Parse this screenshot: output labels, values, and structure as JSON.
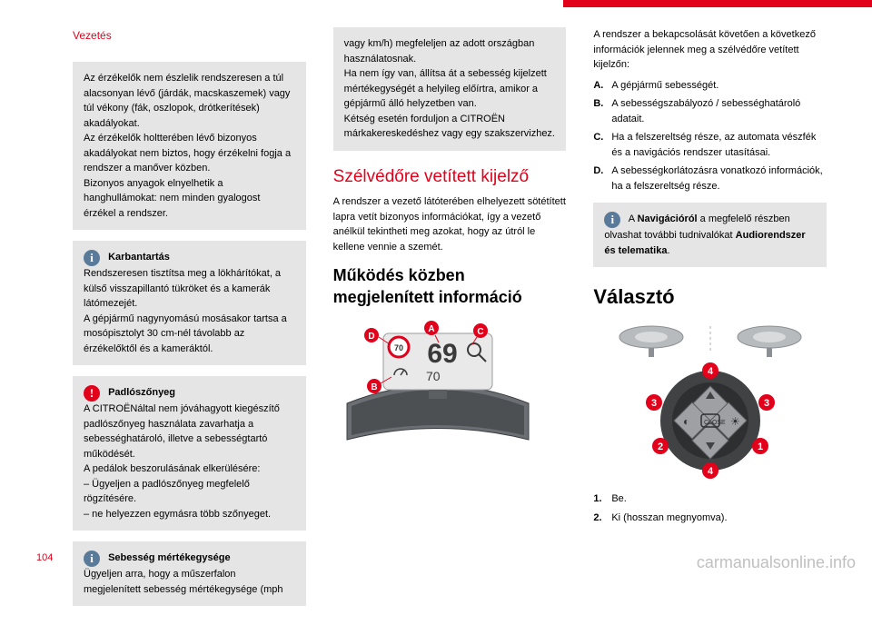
{
  "header": "Vezetés",
  "page_number": "104",
  "watermark": "carmanualsonline.info",
  "colors": {
    "brand_red": "#e2001a",
    "note_bg": "#e5e5e5",
    "info_icon": "#5a7a9a",
    "warn_icon": "#e2001a",
    "text": "#000000",
    "watermark": "#c0c0c0"
  },
  "col1": {
    "box1": "Az érzékelők nem észlelik rendszeresen a túl alacsonyan lévő (járdák, macskaszemek) vagy túl vékony (fák, oszlopok, drótkerítések) akadályokat.\nAz érzékelők holtterében lévő bizonyos akadályokat nem biztos, hogy érzékelni fogja a rendszer a manőver közben.\nBizonyos anyagok elnyelhetik a hanghullámokat: nem minden gyalogost érzékel a rendszer.",
    "box2_title": "Karbantartás",
    "box2_body": "Rendszeresen tisztítsa meg a lökhárítókat, a külső visszapillantó tükröket és a kamerák látómezejét.\nA gépjármű nagynyomású mosásakor tartsa a mosópisztolyt 30 cm-nél távolabb az érzékelőktől és a kameráktól.",
    "box3_title": "Padlószőnyeg",
    "box3_body": "A CITROËNáltal nem jóváhagyott kiegészítő padlószőnyeg használata zavarhatja a sebességhatároló, illetve a sebességtartó működését.\nA pedálok beszorulásának elkerülésére:\n– Ügyeljen a padlószőnyeg megfelelő rögzítésére.\n– ne helyezzen egymásra több szőnyeget.",
    "box4_title": "Sebesség mértékegysége",
    "box4_body": "Ügyeljen arra, hogy a műszerfalon megjelenített sebesség mértékegysége (mph"
  },
  "col2": {
    "box1": "vagy km/h) megfeleljen az adott országban használatosnak.\nHa nem így van, állítsa át a sebesség kijelzett mértékegységét a helyileg előírtra, amikor a gépjármű álló helyzetben van.\nKétség esetén forduljon a CITROËN márkakereskedéshez vagy egy szakszervizhez.",
    "title1": "Szélvédőre vetített kijelző",
    "para1": "A rendszer a vezető látóterében elhelyezett sötétített lapra vetít bizonyos információkat, így a vezető anélkül tekintheti meg azokat, hogy az útról le kellene vennie a szemét.",
    "title2": "Működés közben megjelenített információ",
    "hud": {
      "speed": "69",
      "aux": "70",
      "sign": "70",
      "callouts": [
        "D",
        "A",
        "C",
        "B"
      ],
      "callout_color": "#e2001a",
      "display_bg": "#e9e9e9",
      "speed_color": "#3a3a3a"
    }
  },
  "col3": {
    "intro": "A rendszer a bekapcsolását követően a következő információk jelennek meg a szélvédőre vetített kijelzőn:",
    "items": [
      {
        "l": "A.",
        "t": "A gépjármű sebességét."
      },
      {
        "l": "B.",
        "t": "A sebességszabályozó / sebességhatároló adatait."
      },
      {
        "l": "C.",
        "t": "Ha a felszereltség része, az automata vészfék és a navigációs rendszer utasításai."
      },
      {
        "l": "D.",
        "t": "A sebességkorlátozásra vonatkozó információk, ha a felszereltség része."
      }
    ],
    "box1_pre": "A ",
    "box1_bold": "Navigációról",
    "box1_mid": " a megfelelő részben olvashat további tudnivalókat ",
    "box1_bold2": "Audiorendszer és telematika",
    "box1_post": ".",
    "title_selector": "Választó",
    "selector": {
      "numbers": [
        "1",
        "2",
        "3",
        "4"
      ],
      "num_color": "#e2001a",
      "pad_bg": "#404244",
      "pad_button_bg": "#9ea0a3",
      "wheel_color": "#b8bbbe"
    },
    "list2": [
      {
        "l": "1.",
        "t": "Be."
      },
      {
        "l": "2.",
        "t": "Ki (hosszan megnyomva)."
      }
    ]
  }
}
